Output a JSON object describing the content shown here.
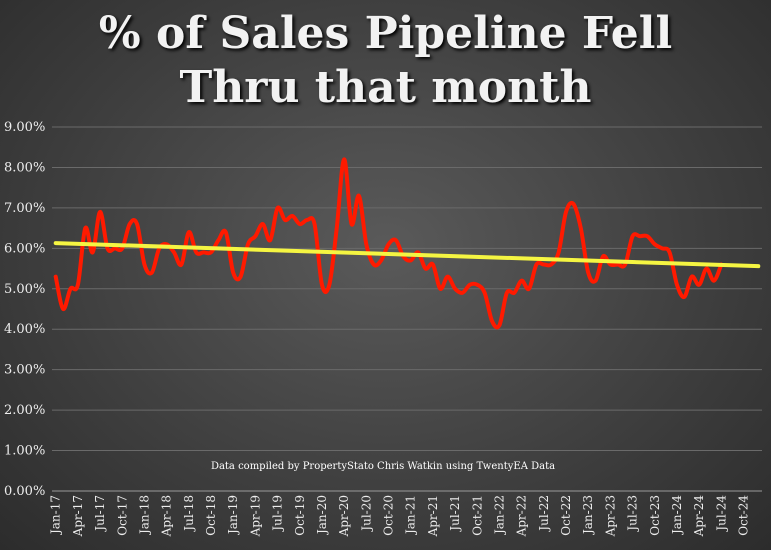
{
  "title_line1": "% of Sales Pipeline Fell",
  "title_line2": "Thru that month",
  "chart_data": {
    "type": "line",
    "title": "% of Sales Pipeline Fell Thru that month",
    "xlabel": "",
    "ylabel": "",
    "ylim": [
      0,
      9
    ],
    "y_tick_labels": [
      "0.00%",
      "1.00%",
      "2.00%",
      "3.00%",
      "4.00%",
      "5.00%",
      "6.00%",
      "7.00%",
      "8.00%",
      "9.00%"
    ],
    "x_tick_labels": [
      "Jan-17",
      "Apr-17",
      "Jul-17",
      "Oct-17",
      "Jan-18",
      "Apr-18",
      "Jul-18",
      "Oct-18",
      "Jan-19",
      "Apr-19",
      "Jul-19",
      "Oct-19",
      "Jan-20",
      "Apr-20",
      "Jul-20",
      "Oct-20",
      "Jan-21",
      "Apr-21",
      "Jul-21",
      "Oct-21",
      "Jan-22",
      "Apr-22",
      "Jul-22",
      "Oct-22",
      "Jan-23",
      "Apr-23",
      "Jul-23",
      "Oct-23",
      "Jan-24",
      "Apr-24",
      "Jul-24",
      "Oct-24"
    ],
    "x_start": "Jan-17",
    "x_end": "Dec-24",
    "grid": true,
    "annotation": "Data compiled by PropertyStato Chris Watkin using TwentyEA Data",
    "series_color": "#ff1a00",
    "trend_color": "#f5f542",
    "series": [
      {
        "values": [
          5.3,
          4.5,
          5.0,
          5.1,
          6.5,
          5.9,
          6.9,
          6.0,
          6.0,
          6.0,
          6.6,
          6.6,
          5.6,
          5.4,
          6.0,
          6.1,
          5.9,
          5.6,
          6.4,
          5.9,
          5.9,
          5.9,
          6.2,
          6.4,
          5.4,
          5.3,
          6.1,
          6.3,
          6.6,
          6.2,
          7.0,
          6.7,
          6.8,
          6.6,
          6.7,
          6.6,
          5.1,
          5.1,
          6.5,
          8.2,
          6.6,
          7.3,
          6.1,
          5.6,
          5.7,
          6.1,
          6.2,
          5.8,
          5.7,
          5.9,
          5.5,
          5.6,
          5.0,
          5.3,
          5.0,
          4.9,
          5.1,
          5.1,
          4.9,
          4.2,
          4.1,
          4.9,
          4.9,
          5.2,
          5.0,
          5.6,
          5.6,
          5.6,
          5.9,
          6.9,
          7.1,
          6.5,
          5.4,
          5.2,
          5.8,
          5.6,
          5.6,
          5.6,
          6.3,
          6.3,
          6.3,
          6.1,
          6.0,
          5.9,
          5.1,
          4.8,
          5.3,
          5.1,
          5.5,
          5.2,
          5.6
        ]
      }
    ],
    "trend": {
      "start": 6.13,
      "end": 5.56
    }
  }
}
